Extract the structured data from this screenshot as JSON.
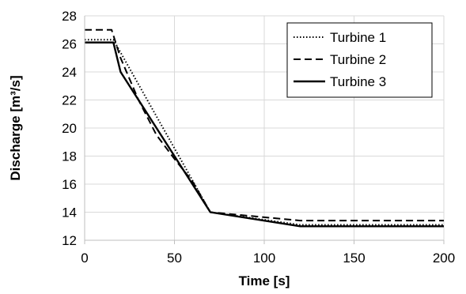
{
  "chart_data": {
    "type": "line",
    "title": "",
    "xlabel": "Time [s]",
    "ylabel": "Discharge [m³/s]",
    "xlim": [
      0,
      200
    ],
    "ylim": [
      12,
      28
    ],
    "xticks": [
      0,
      50,
      100,
      150,
      200
    ],
    "yticks": [
      12,
      14,
      16,
      18,
      20,
      22,
      24,
      26,
      28
    ],
    "xtick_labels": [
      "0",
      "50",
      "100",
      "150",
      "200"
    ],
    "ytick_labels": [
      "12",
      "14",
      "16",
      "18",
      "20",
      "22",
      "24",
      "26",
      "28"
    ],
    "grid": true,
    "legend_position": "top-right",
    "series": [
      {
        "name": "Turbine 1",
        "style": "dotted",
        "color": "#000000",
        "x": [
          0,
          16,
          70,
          120,
          200
        ],
        "y": [
          26.3,
          26.3,
          14.0,
          13.1,
          13.1
        ]
      },
      {
        "name": "Turbine 2",
        "style": "dashed",
        "color": "#000000",
        "x": [
          0,
          15,
          20,
          30,
          40,
          50,
          60,
          70,
          120,
          200
        ],
        "y": [
          27.0,
          27.0,
          25.0,
          22.0,
          19.5,
          17.8,
          16.2,
          14.0,
          13.4,
          13.4
        ]
      },
      {
        "name": "Turbine 3",
        "style": "solid",
        "color": "#000000",
        "x": [
          0,
          16,
          20,
          70,
          120,
          200
        ],
        "y": [
          26.1,
          26.1,
          24.0,
          14.0,
          13.0,
          13.0
        ]
      }
    ]
  }
}
